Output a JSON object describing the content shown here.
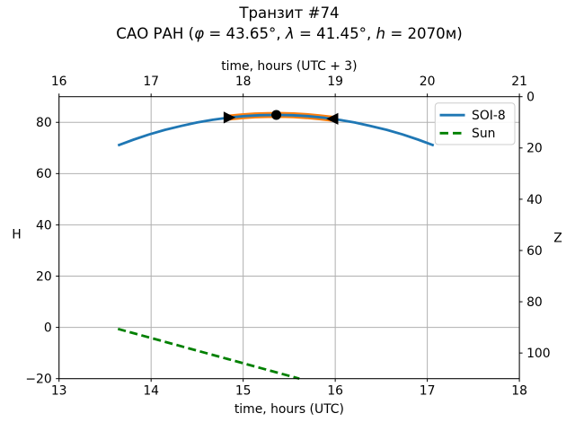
{
  "figure": {
    "title_line1": "Транзит #74",
    "title_line2_segments": [
      {
        "t": "САО РАН (",
        "italic": false
      },
      {
        "t": "φ",
        "italic": true
      },
      {
        "t": " = 43.65°, ",
        "italic": false
      },
      {
        "t": "λ",
        "italic": true
      },
      {
        "t": " = 41.45°, ",
        "italic": false
      },
      {
        "t": "h",
        "italic": true
      },
      {
        "t": " = 2070м)",
        "italic": false
      }
    ]
  },
  "chart_data": {
    "type": "line",
    "title": "Транзит #74",
    "subtitle": "САО РАН (φ = 43.65°, λ = 41.45°, h = 2070м)",
    "grid": true,
    "axes": {
      "x_bottom": {
        "label": "time, hours (UTC)",
        "range": [
          13,
          18
        ],
        "tick_values": [
          13,
          14,
          15,
          16,
          17,
          18
        ],
        "tick_labels": [
          "13",
          "14",
          "15",
          "16",
          "17",
          "18"
        ]
      },
      "x_top": {
        "label": "time, hours (UTC + 3)",
        "tick_positions": [
          13,
          14,
          15,
          16,
          17,
          18
        ],
        "tick_labels": [
          "16",
          "17",
          "18",
          "19",
          "20",
          "21"
        ]
      },
      "y_left": {
        "label": "H",
        "range": [
          -20,
          90
        ],
        "tick_values": [
          80,
          60,
          40,
          20,
          0,
          -20
        ],
        "tick_labels": [
          "80",
          "60",
          "40",
          "20",
          "0",
          "−20"
        ]
      },
      "y_right": {
        "label": "Z",
        "relation": "Z = 90 − H",
        "tick_h_positions": [
          90,
          70,
          50,
          30,
          10,
          -10
        ],
        "tick_labels": [
          "0",
          "20",
          "40",
          "60",
          "80",
          "100"
        ]
      }
    },
    "series": [
      {
        "name": "transit-highlight",
        "color": "#ff7f0e",
        "width": 6.8,
        "dash": null,
        "in_legend": false,
        "points": [
          [
            14.85,
            81.87
          ],
          [
            14.99,
            82.36
          ],
          [
            15.13,
            82.7
          ],
          [
            15.27,
            82.87
          ],
          [
            15.41,
            82.89
          ],
          [
            15.55,
            82.75
          ],
          [
            15.69,
            82.45
          ],
          [
            15.83,
            81.99
          ],
          [
            15.97,
            81.37
          ]
        ]
      },
      {
        "name": "SOI-8",
        "color": "#1f77b4",
        "width": 2.8,
        "dash": null,
        "in_legend": true,
        "points": [
          [
            13.64,
            71.0
          ],
          [
            13.81,
            73.26
          ],
          [
            13.98,
            75.28
          ],
          [
            14.15,
            77.07
          ],
          [
            14.33,
            78.62
          ],
          [
            14.5,
            79.93
          ],
          [
            14.67,
            81.0
          ],
          [
            14.84,
            81.83
          ],
          [
            15.01,
            82.42
          ],
          [
            15.18,
            82.78
          ],
          [
            15.36,
            82.9
          ],
          [
            15.53,
            82.78
          ],
          [
            15.7,
            82.42
          ],
          [
            15.87,
            81.83
          ],
          [
            16.04,
            81.0
          ],
          [
            16.21,
            79.93
          ],
          [
            16.38,
            78.62
          ],
          [
            16.56,
            77.07
          ],
          [
            16.73,
            75.28
          ],
          [
            16.9,
            73.26
          ],
          [
            17.07,
            71.0
          ]
        ]
      },
      {
        "name": "Sun",
        "color": "#008000",
        "width": 2.8,
        "dash": [
          9,
          4.5
        ],
        "in_legend": true,
        "points": [
          [
            13.64,
            -0.6
          ],
          [
            15.61,
            -20
          ]
        ]
      }
    ],
    "markers": [
      {
        "shape": "triangle-right",
        "x": 14.85,
        "y": 81.87,
        "color": "#000000"
      },
      {
        "shape": "circle",
        "x": 15.36,
        "y": 82.9,
        "color": "#000000"
      },
      {
        "shape": "triangle-left",
        "x": 15.97,
        "y": 81.37,
        "color": "#000000"
      }
    ],
    "legend": {
      "position": "upper right",
      "entries": [
        {
          "label": "SOI-8",
          "color": "#1f77b4",
          "dash": false
        },
        {
          "label": "Sun",
          "color": "#008000",
          "dash": true
        }
      ]
    },
    "colors": {
      "grid": "#b0b0b0",
      "spine": "#000000",
      "text": "#000000",
      "legend_border": "#cccccc",
      "background": "#ffffff"
    }
  }
}
